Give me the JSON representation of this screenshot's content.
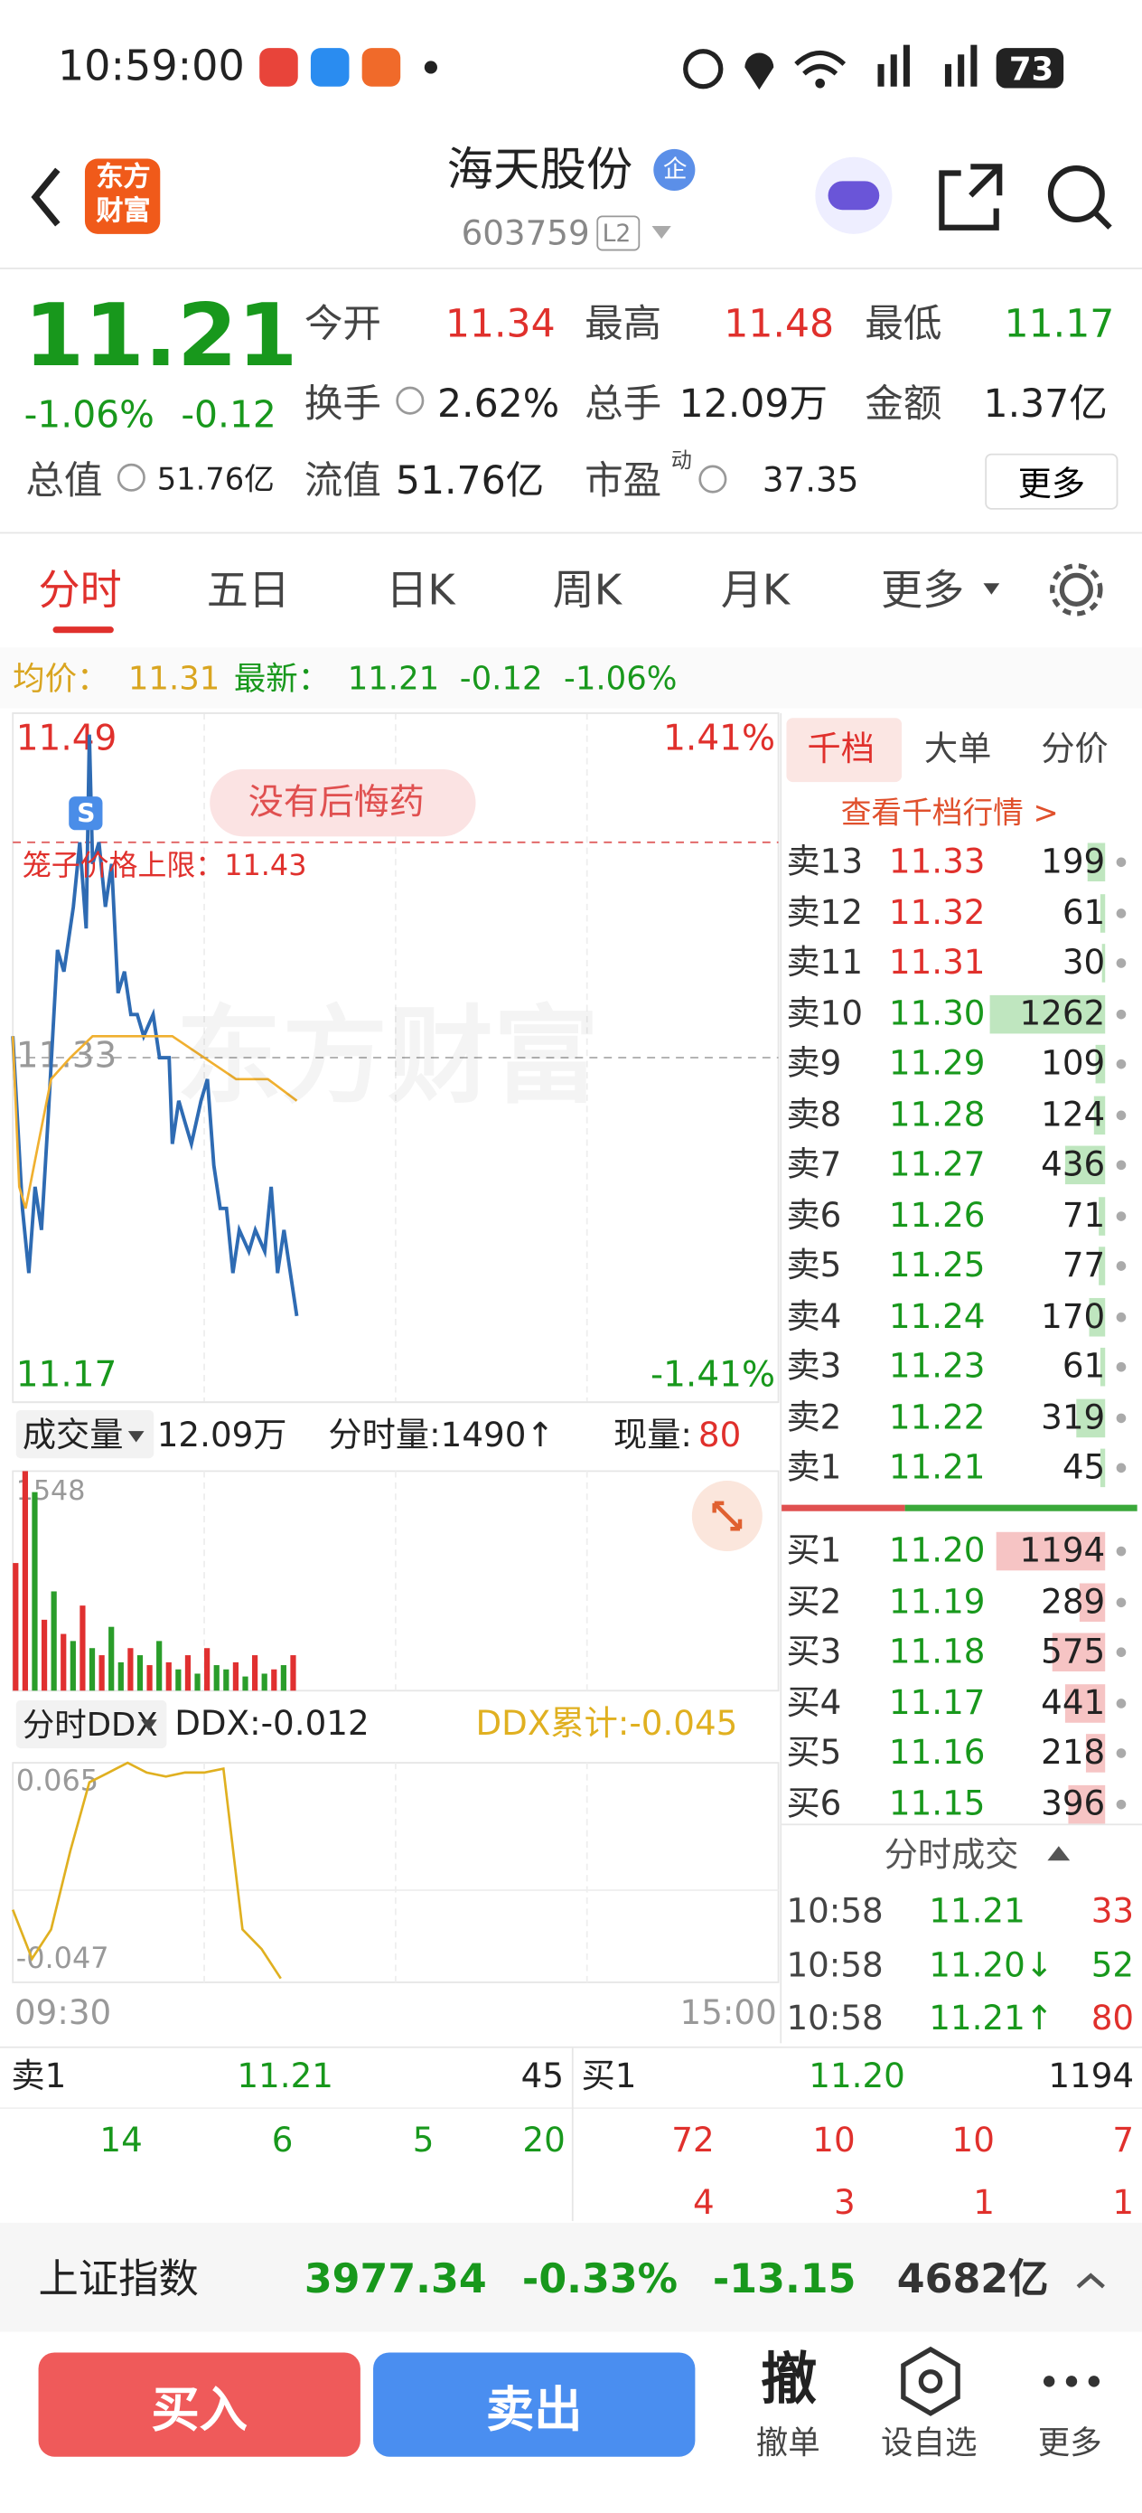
{
  "status_bar": {
    "time": "10:59:00",
    "battery": "73"
  },
  "header": {
    "logo": "东方财富",
    "title": "海天股份",
    "badge": "企",
    "code": "603759",
    "level": "L2"
  },
  "quote": {
    "price": "11.21",
    "change_pct": "-1.06%",
    "change": "-0.12",
    "stats": [
      {
        "label": "今开",
        "value": "11.34"
      },
      {
        "label": "最高",
        "value": "11.48"
      },
      {
        "label": "最低",
        "value": "11.17"
      },
      {
        "label": "换手",
        "value": "2.62%"
      },
      {
        "label": "总手",
        "value": "12.09万"
      },
      {
        "label": "金额",
        "value": "1.37亿"
      },
      {
        "label": "总值",
        "value": "51.76亿"
      },
      {
        "label": "流值",
        "value": "51.76亿"
      },
      {
        "label": "市盈",
        "sup": "动",
        "value": "37.35"
      }
    ],
    "more": "更多"
  },
  "tabs": [
    "分时",
    "五日",
    "日K",
    "周K",
    "月K",
    "更多"
  ],
  "info_line": {
    "avg_label": "均价：",
    "avg": "11.31",
    "last_label": "最新：",
    "last": "11.21",
    "change": "-0.12",
    "change_pct": "-1.06%"
  },
  "chart_data": [
    {
      "type": "line",
      "annotations": [
        "没有后悔药",
        "笼子价格上限：11.43"
      ],
      "limit_line": 11.43,
      "watermark": "东方财富",
      "marker": "S",
      "xlim": [
        0,
        240
      ],
      "ylim": [
        11.17,
        11.49
      ],
      "yticks": [
        11.17,
        11.33,
        11.49
      ],
      "y2lim": [
        -1.41,
        1.41
      ],
      "y2ticks": [
        {
          "value": 1.41,
          "label": "1.41%"
        },
        {
          "value": -1.41,
          "label": "-1.41%"
        }
      ],
      "series": [
        {
          "color": "#2e6bb3",
          "x": [
            0,
            3,
            5,
            7,
            9,
            11,
            14,
            16,
            19,
            21,
            23,
            24,
            25,
            27,
            29,
            31,
            33,
            35,
            37,
            39,
            41,
            44,
            46,
            49,
            50,
            52,
            54,
            56,
            59,
            61,
            63,
            65,
            67,
            69,
            71,
            74,
            76,
            79,
            81,
            83,
            85,
            87,
            89
          ],
          "values": [
            11.34,
            11.26,
            11.23,
            11.27,
            11.25,
            11.3,
            11.38,
            11.37,
            11.4,
            11.43,
            11.39,
            11.48,
            11.42,
            11.43,
            11.4,
            11.42,
            11.36,
            11.37,
            11.35,
            11.35,
            11.34,
            11.35,
            11.33,
            11.33,
            11.29,
            11.31,
            11.3,
            11.29,
            11.31,
            11.32,
            11.28,
            11.26,
            11.26,
            11.23,
            11.25,
            11.24,
            11.25,
            11.24,
            11.27,
            11.23,
            11.25,
            11.23,
            11.21
          ]
        },
        {
          "color": "#f0b030",
          "x": [
            0,
            2,
            4,
            8,
            12,
            18,
            25,
            35,
            50,
            60,
            70,
            80,
            89
          ],
          "values": [
            11.34,
            11.27,
            11.26,
            11.29,
            11.32,
            11.33,
            11.34,
            11.34,
            11.34,
            11.33,
            11.32,
            11.32,
            11.31
          ]
        }
      ]
    },
    {
      "type": "bar",
      "title": "成交量",
      "total": "12.09万",
      "minute_volume": "分时量:1490↑",
      "current_label": "现量:",
      "current": "80",
      "xlim": [
        0,
        240
      ],
      "ylim": [
        0,
        1548
      ],
      "yticks": [
        1548
      ],
      "x": [
        0,
        3,
        6,
        9,
        12,
        15,
        18,
        21,
        24,
        27,
        30,
        33,
        36,
        39,
        42,
        45,
        48,
        51,
        54,
        57,
        60,
        63,
        66,
        69,
        72,
        75,
        78,
        81,
        84,
        87
      ],
      "values": [
        900,
        1548,
        1400,
        500,
        700,
        400,
        350,
        600,
        300,
        250,
        450,
        200,
        300,
        250,
        180,
        350,
        200,
        150,
        250,
        120,
        300,
        180,
        150,
        200,
        100,
        250,
        120,
        150,
        180,
        250
      ],
      "colors": [
        "#e03030",
        "#e03030",
        "#2a9d2a",
        "#e03030",
        "#2a9d2a",
        "#e03030",
        "#2a9d2a",
        "#e03030",
        "#2a9d2a",
        "#e03030",
        "#2a9d2a",
        "#2a9d2a",
        "#e03030",
        "#2a9d2a",
        "#e03030",
        "#2a9d2a",
        "#e03030",
        "#2a9d2a",
        "#e03030",
        "#2a9d2a",
        "#e03030",
        "#2a9d2a",
        "#2a9d2a",
        "#e03030",
        "#2a9d2a",
        "#e03030",
        "#2a9d2a",
        "#e03030",
        "#2a9d2a",
        "#e03030"
      ]
    },
    {
      "type": "line",
      "title": "分时DDX",
      "ddx": "DDX:-0.012",
      "ddx_total": "DDX累计:-0.045",
      "xlim": [
        0,
        240
      ],
      "xticks": [
        {
          "value": 0,
          "label": "09:30"
        },
        {
          "value": 240,
          "label": "15:00"
        }
      ],
      "ylim": [
        -0.047,
        0.065
      ],
      "yticks": [
        -0.047,
        0.065
      ],
      "series": [
        {
          "color": "#e0b020",
          "x": [
            0,
            6,
            12,
            18,
            24,
            30,
            36,
            42,
            48,
            54,
            60,
            66,
            72,
            78,
            84
          ],
          "values": [
            -0.01,
            -0.035,
            -0.02,
            0.02,
            0.055,
            0.06,
            0.065,
            0.06,
            0.058,
            0.06,
            0.06,
            0.062,
            -0.02,
            -0.03,
            -0.045
          ]
        }
      ]
    }
  ],
  "order_book": {
    "tabs": [
      "千档",
      "大单",
      "分价"
    ],
    "link": "查看千档行情 >",
    "sell": [
      {
        "label": "卖13",
        "price": "11.33",
        "volume": 199
      },
      {
        "label": "卖12",
        "price": "11.32",
        "volume": 61
      },
      {
        "label": "卖11",
        "price": "11.31",
        "volume": 30
      },
      {
        "label": "卖10",
        "price": "11.30",
        "volume": 1262
      },
      {
        "label": "卖9",
        "price": "11.29",
        "volume": 109
      },
      {
        "label": "卖8",
        "price": "11.28",
        "volume": 124
      },
      {
        "label": "卖7",
        "price": "11.27",
        "volume": 436
      },
      {
        "label": "卖6",
        "price": "11.26",
        "volume": 71
      },
      {
        "label": "卖5",
        "price": "11.25",
        "volume": 77
      },
      {
        "label": "卖4",
        "price": "11.24",
        "volume": 170
      },
      {
        "label": "卖3",
        "price": "11.23",
        "volume": 61
      },
      {
        "label": "卖2",
        "price": "11.22",
        "volume": 319
      },
      {
        "label": "卖1",
        "price": "11.21",
        "volume": 45
      }
    ],
    "buy": [
      {
        "label": "买1",
        "price": "11.20",
        "volume": 1194
      },
      {
        "label": "买2",
        "price": "11.19",
        "volume": 289
      },
      {
        "label": "买3",
        "price": "11.18",
        "volume": 575
      },
      {
        "label": "买4",
        "price": "11.17",
        "volume": 441
      },
      {
        "label": "买5",
        "price": "11.16",
        "volume": 218
      },
      {
        "label": "买6",
        "price": "11.15",
        "volume": 396
      }
    ]
  },
  "trades": {
    "title": "分时成交",
    "rows": [
      {
        "time": "10:58",
        "price": "11.21",
        "volume": "33"
      },
      {
        "time": "10:58",
        "price": "11.20↓",
        "volume": "52"
      },
      {
        "time": "10:58",
        "price": "11.21↑",
        "volume": "80"
      }
    ]
  },
  "level1": {
    "sell": {
      "label": "卖1",
      "price": "11.21",
      "volume": "45"
    },
    "buy": {
      "label": "买1",
      "price": "11.20",
      "volume": "1194"
    },
    "sell_detail": [
      "14",
      "6",
      "5",
      "20"
    ],
    "buy_detail": [
      "72",
      "10",
      "10",
      "7"
    ],
    "buy_detail2": [
      "4",
      "3",
      "1",
      "1"
    ]
  },
  "index_bar": {
    "name": "上证指数",
    "value": "3977.34",
    "change_pct": "-0.33%",
    "change": "-13.15",
    "turnover": "4682亿"
  },
  "actions": {
    "buy": "买入",
    "sell": "卖出",
    "cancel_icon": "撤",
    "cancel": "撤单",
    "watch": "设自选",
    "more": "更多"
  }
}
